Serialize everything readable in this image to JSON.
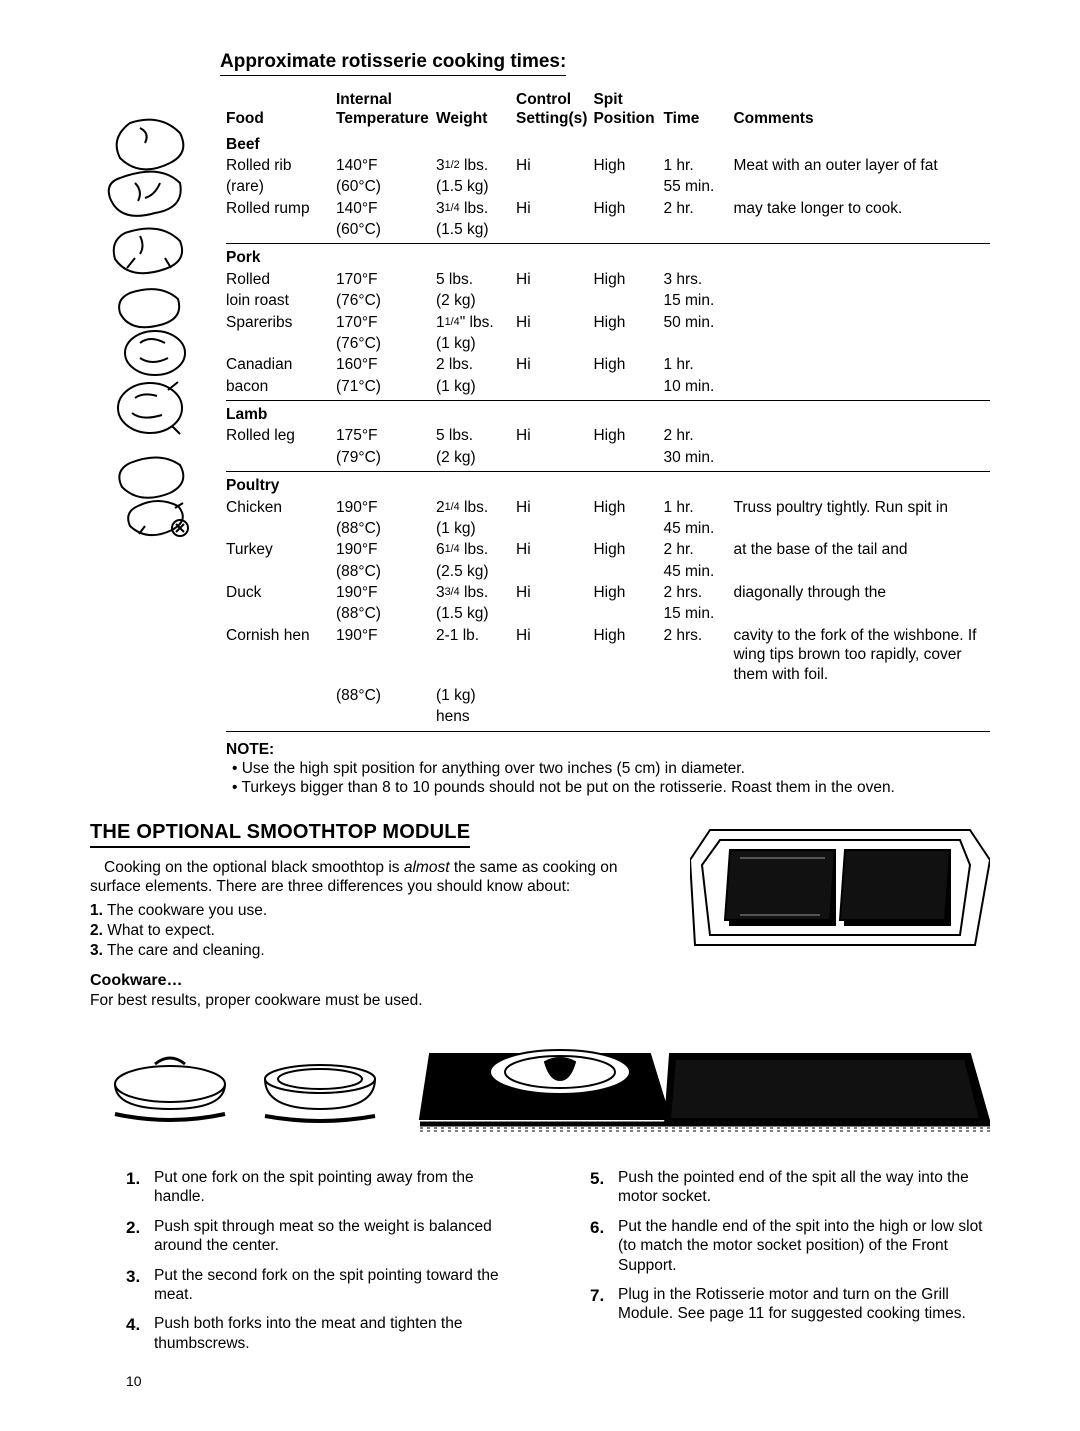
{
  "title": "Approximate rotisserie cooking times:",
  "columns": [
    "Food",
    "Internal Temperature",
    "Weight",
    "Control Setting(s)",
    "Spit Position",
    "Time",
    "Comments"
  ],
  "groups": [
    {
      "name": "Beef",
      "rows": [
        {
          "food": [
            "Rolled rib",
            "(rare)"
          ],
          "temp": [
            "140°F",
            "(60°C)"
          ],
          "weight": [
            "3½ lbs.",
            "(1.5 kg)"
          ],
          "ctrl": "Hi",
          "spit": "High",
          "time": [
            "1 hr.",
            "55 min."
          ],
          "comment": "Meat with an outer layer of fat"
        },
        {
          "food": [
            "Rolled rump"
          ],
          "temp": [
            "140°F",
            "(60°C)"
          ],
          "weight": [
            "3¼ lbs.",
            "(1.5 kg)"
          ],
          "ctrl": "Hi",
          "spit": "High",
          "time": [
            "2 hr."
          ],
          "comment": "may take longer to cook."
        }
      ]
    },
    {
      "name": "Pork",
      "rows": [
        {
          "food": [
            "Rolled",
            "loin roast"
          ],
          "temp": [
            "170°F",
            "(76°C)"
          ],
          "weight": [
            "5 lbs.",
            "(2 kg)"
          ],
          "ctrl": "Hi",
          "spit": "High",
          "time": [
            "3 hrs.",
            "15 min."
          ],
          "comment": ""
        },
        {
          "food": [
            "Spareribs"
          ],
          "temp": [
            "170°F",
            "(76°C)"
          ],
          "weight": [
            "1¼\" lbs.",
            "(1 kg)"
          ],
          "ctrl": "Hi",
          "spit": "High",
          "time": [
            "50 min."
          ],
          "comment": ""
        },
        {
          "food": [
            "Canadian",
            "bacon"
          ],
          "temp": [
            "160°F",
            "(71°C)"
          ],
          "weight": [
            "2 lbs.",
            "(1 kg)"
          ],
          "ctrl": "Hi",
          "spit": "High",
          "time": [
            "1 hr.",
            "10 min."
          ],
          "comment": ""
        }
      ]
    },
    {
      "name": "Lamb",
      "rows": [
        {
          "food": [
            "Rolled leg"
          ],
          "temp": [
            "175°F",
            "(79°C)"
          ],
          "weight": [
            "5 lbs.",
            "(2 kg)"
          ],
          "ctrl": "Hi",
          "spit": "High",
          "time": [
            "2 hr.",
            "30 min."
          ],
          "comment": ""
        }
      ]
    },
    {
      "name": "Poultry",
      "rows": [
        {
          "food": [
            "Chicken"
          ],
          "temp": [
            "190°F",
            "(88°C)"
          ],
          "weight": [
            "2¼ lbs.",
            "(1 kg)"
          ],
          "ctrl": "Hi",
          "spit": "High",
          "time": [
            "1 hr.",
            "45 min."
          ],
          "comment": "Truss poultry tightly. Run spit in"
        },
        {
          "food": [
            "Turkey"
          ],
          "temp": [
            "190°F",
            "(88°C)"
          ],
          "weight": [
            "6¼ lbs.",
            "(2.5 kg)"
          ],
          "ctrl": "Hi",
          "spit": "High",
          "time": [
            "2 hr.",
            "45 min."
          ],
          "comment": "at the base of the tail and"
        },
        {
          "food": [
            "Duck"
          ],
          "temp": [
            "190°F",
            "(88°C)"
          ],
          "weight": [
            "3¾ lbs.",
            "(1.5 kg)"
          ],
          "ctrl": "Hi",
          "spit": "High",
          "time": [
            "2 hrs.",
            "15 min."
          ],
          "comment": "diagonally through the"
        },
        {
          "food": [
            "Cornish hen"
          ],
          "temp": [
            "190°F",
            "(88°C)"
          ],
          "weight": [
            "2-1 lb.",
            "(1 kg)",
            "hens"
          ],
          "ctrl": "Hi",
          "spit": "High",
          "time": [
            "2 hrs."
          ],
          "comment": "cavity to the fork of the wishbone. If wing tips brown too rapidly, cover them with foil."
        }
      ]
    }
  ],
  "note_title": "NOTE:",
  "notes": [
    "Use the high spit position for anything over two inches (5 cm) in diameter.",
    "Turkeys bigger than 8 to 10 pounds should not be put on the rotisserie. Roast them in the oven."
  ],
  "section2_title": "THE OPTIONAL SMOOTHTOP MODULE",
  "section2_intro": "Cooking on the optional black smoothtop is almost the same as cooking on surface elements. There are three differences you should know about:",
  "section2_list": [
    "The cookware you use.",
    "What to expect.",
    "The care and cleaning."
  ],
  "cookware_title": "Cookware…",
  "cookware_text": "For best results, proper cookware must be used.",
  "steps_left": [
    "Put one fork on the spit pointing away from the handle.",
    "Push spit through meat so the weight is balanced around the center.",
    "Put the second fork on the spit pointing toward the meat.",
    "Push both forks into the meat and tighten the thumbscrews."
  ],
  "steps_right": [
    "Push the pointed end of the spit all the way into the motor socket.",
    "Put the handle end of the spit into the high or low slot (to match the motor socket position) of the Front Support.",
    "Plug in the Rotisserie motor and turn on the Grill Module. See page 11 for suggested cooking times."
  ],
  "page_num": "10",
  "colors": {
    "text": "#000000",
    "bg": "#ffffff"
  }
}
